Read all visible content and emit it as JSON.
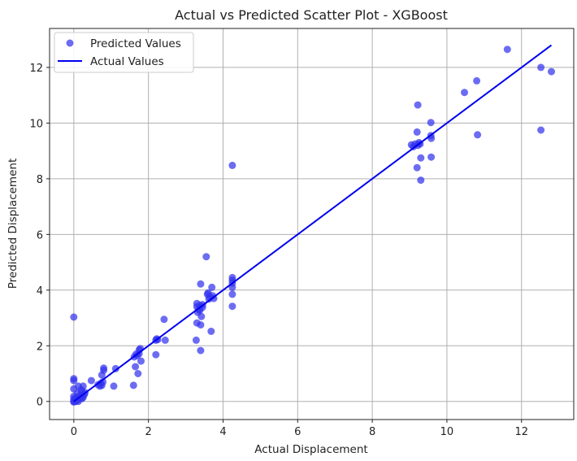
{
  "chart_data": {
    "type": "scatter",
    "title": "Actual vs Predicted Scatter Plot - XGBoost",
    "xlabel": "Actual Displacement",
    "ylabel": "Predicted Displacement",
    "xlim": [
      -0.65,
      13.4
    ],
    "ylim": [
      -0.65,
      13.4
    ],
    "xticks": [
      0,
      2,
      4,
      6,
      8,
      10,
      12
    ],
    "yticks": [
      0,
      2,
      4,
      6,
      8,
      10,
      12
    ],
    "grid": true,
    "legend_position": "top-left",
    "colors": {
      "points": "#3333ee",
      "line": "#0000ee",
      "grid": "#b0b0b0"
    },
    "series": [
      {
        "name": "Predicted Values",
        "kind": "scatter",
        "points": [
          [
            0.0,
            3.03
          ],
          [
            0.0,
            0.82
          ],
          [
            0.0,
            0.75
          ],
          [
            0.0,
            0.45
          ],
          [
            0.0,
            0.18
          ],
          [
            0.0,
            0.08
          ],
          [
            0.0,
            0.0
          ],
          [
            0.0,
            -0.02
          ],
          [
            0.05,
            0.12
          ],
          [
            0.05,
            0.0
          ],
          [
            0.1,
            0.3
          ],
          [
            0.1,
            0.05
          ],
          [
            0.12,
            0.55
          ],
          [
            0.12,
            0.0
          ],
          [
            0.15,
            0.2
          ],
          [
            0.18,
            0.12
          ],
          [
            0.2,
            0.42
          ],
          [
            0.2,
            0.22
          ],
          [
            0.22,
            0.35
          ],
          [
            0.22,
            0.1
          ],
          [
            0.25,
            0.15
          ],
          [
            0.25,
            0.55
          ],
          [
            0.28,
            0.25
          ],
          [
            0.3,
            0.32
          ],
          [
            0.47,
            0.75
          ],
          [
            0.65,
            0.6
          ],
          [
            0.7,
            0.55
          ],
          [
            0.72,
            0.65
          ],
          [
            0.75,
            0.58
          ],
          [
            0.75,
            0.95
          ],
          [
            0.78,
            0.7
          ],
          [
            0.8,
            1.12
          ],
          [
            0.8,
            1.2
          ],
          [
            1.07,
            0.55
          ],
          [
            1.12,
            1.18
          ],
          [
            1.6,
            0.58
          ],
          [
            1.62,
            1.6
          ],
          [
            1.65,
            1.25
          ],
          [
            1.67,
            1.7
          ],
          [
            1.7,
            1.65
          ],
          [
            1.72,
            1.0
          ],
          [
            1.75,
            1.72
          ],
          [
            1.75,
            1.85
          ],
          [
            1.78,
            1.9
          ],
          [
            1.8,
            1.45
          ],
          [
            2.2,
            2.2
          ],
          [
            2.2,
            1.68
          ],
          [
            2.22,
            2.25
          ],
          [
            2.25,
            2.22
          ],
          [
            2.42,
            2.95
          ],
          [
            2.45,
            2.2
          ],
          [
            3.28,
            2.2
          ],
          [
            3.3,
            2.82
          ],
          [
            3.3,
            3.4
          ],
          [
            3.3,
            3.52
          ],
          [
            3.32,
            3.2
          ],
          [
            3.35,
            3.3
          ],
          [
            3.38,
            3.28
          ],
          [
            3.38,
            3.45
          ],
          [
            3.4,
            4.22
          ],
          [
            3.4,
            2.75
          ],
          [
            3.4,
            1.83
          ],
          [
            3.42,
            3.05
          ],
          [
            3.45,
            3.38
          ],
          [
            3.45,
            3.48
          ],
          [
            3.55,
            5.2
          ],
          [
            3.58,
            3.85
          ],
          [
            3.6,
            3.9
          ],
          [
            3.62,
            3.68
          ],
          [
            3.65,
            3.75
          ],
          [
            3.68,
            2.52
          ],
          [
            3.7,
            4.1
          ],
          [
            3.72,
            3.8
          ],
          [
            3.75,
            3.7
          ],
          [
            4.25,
            8.48
          ],
          [
            4.25,
            4.45
          ],
          [
            4.25,
            4.35
          ],
          [
            4.25,
            4.25
          ],
          [
            4.25,
            4.1
          ],
          [
            4.25,
            3.85
          ],
          [
            4.25,
            3.42
          ],
          [
            9.05,
            9.22
          ],
          [
            9.1,
            9.15
          ],
          [
            9.15,
            9.25
          ],
          [
            9.2,
            8.4
          ],
          [
            9.2,
            9.68
          ],
          [
            9.22,
            10.65
          ],
          [
            9.22,
            9.2
          ],
          [
            9.25,
            9.3
          ],
          [
            9.28,
            9.25
          ],
          [
            9.3,
            7.95
          ],
          [
            9.3,
            8.75
          ],
          [
            9.57,
            10.02
          ],
          [
            9.57,
            9.55
          ],
          [
            9.58,
            9.45
          ],
          [
            9.58,
            8.78
          ],
          [
            10.47,
            11.1
          ],
          [
            10.8,
            11.52
          ],
          [
            10.82,
            9.58
          ],
          [
            11.62,
            12.65
          ],
          [
            12.52,
            12.0
          ],
          [
            12.52,
            9.75
          ],
          [
            12.8,
            11.85
          ]
        ]
      },
      {
        "name": "Actual Values",
        "kind": "line",
        "points": [
          [
            0.0,
            0.0
          ],
          [
            12.8,
            12.8
          ]
        ]
      }
    ]
  }
}
